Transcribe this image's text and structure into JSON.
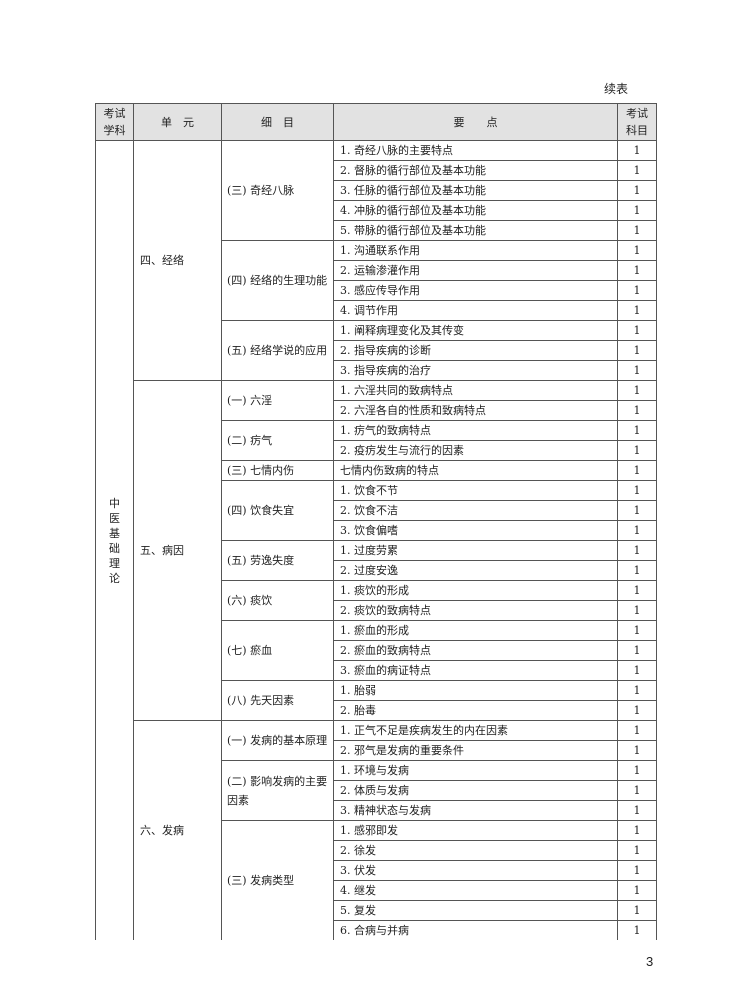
{
  "continued_label": "续表",
  "headers": [
    "考试学科",
    "单　元",
    "细　目",
    "要　　点",
    "考试科目"
  ],
  "subject": "中医基础理论",
  "units": [
    {
      "name": "四、经络",
      "details": [
        {
          "name": "(三) 奇经八脉",
          "points": [
            {
              "text": "1. 奇经八脉的主要特点",
              "level": "1"
            },
            {
              "text": "2. 督脉的循行部位及基本功能",
              "level": "1"
            },
            {
              "text": "3. 任脉的循行部位及基本功能",
              "level": "1"
            },
            {
              "text": "4. 冲脉的循行部位及基本功能",
              "level": "1"
            },
            {
              "text": "5. 带脉的循行部位及基本功能",
              "level": "1"
            }
          ]
        },
        {
          "name": "(四) 经络的生理功能",
          "points": [
            {
              "text": "1. 沟通联系作用",
              "level": "1"
            },
            {
              "text": "2. 运输渗灌作用",
              "level": "1"
            },
            {
              "text": "3. 感应传导作用",
              "level": "1"
            },
            {
              "text": "4. 调节作用",
              "level": "1"
            }
          ]
        },
        {
          "name": "(五) 经络学说的应用",
          "points": [
            {
              "text": "1. 阐释病理变化及其传变",
              "level": "1"
            },
            {
              "text": "2. 指导疾病的诊断",
              "level": "1"
            },
            {
              "text": "3. 指导疾病的治疗",
              "level": "1"
            }
          ]
        }
      ]
    },
    {
      "name": "五、病因",
      "details": [
        {
          "name": "(一) 六淫",
          "points": [
            {
              "text": "1. 六淫共同的致病特点",
              "level": "1"
            },
            {
              "text": "2. 六淫各自的性质和致病特点",
              "level": "1"
            }
          ]
        },
        {
          "name": "(二) 疠气",
          "points": [
            {
              "text": "1. 疠气的致病特点",
              "level": "1"
            },
            {
              "text": "2. 疫疠发生与流行的因素",
              "level": "1"
            }
          ]
        },
        {
          "name": "(三) 七情内伤",
          "points": [
            {
              "text": "七情内伤致病的特点",
              "level": "1"
            }
          ]
        },
        {
          "name": "(四) 饮食失宜",
          "points": [
            {
              "text": "1. 饮食不节",
              "level": "1"
            },
            {
              "text": "2. 饮食不洁",
              "level": "1"
            },
            {
              "text": "3. 饮食偏嗜",
              "level": "1"
            }
          ]
        },
        {
          "name": "(五) 劳逸失度",
          "points": [
            {
              "text": "1. 过度劳累",
              "level": "1"
            },
            {
              "text": "2. 过度安逸",
              "level": "1"
            }
          ]
        },
        {
          "name": "(六) 痰饮",
          "points": [
            {
              "text": "1. 痰饮的形成",
              "level": "1"
            },
            {
              "text": "2. 痰饮的致病特点",
              "level": "1"
            }
          ]
        },
        {
          "name": "(七) 瘀血",
          "points": [
            {
              "text": "1. 瘀血的形成",
              "level": "1"
            },
            {
              "text": "2. 瘀血的致病特点",
              "level": "1"
            },
            {
              "text": "3. 瘀血的病证特点",
              "level": "1"
            }
          ]
        },
        {
          "name": "(八) 先天因素",
          "points": [
            {
              "text": "1. 胎弱",
              "level": "1"
            },
            {
              "text": "2. 胎毒",
              "level": "1"
            }
          ]
        }
      ]
    },
    {
      "name": "六、发病",
      "details": [
        {
          "name": "(一) 发病的基本原理",
          "points": [
            {
              "text": "1. 正气不足是疾病发生的内在因素",
              "level": "1"
            },
            {
              "text": "2. 邪气是发病的重要条件",
              "level": "1"
            }
          ]
        },
        {
          "name": "(二) 影响发病的主要因素",
          "points": [
            {
              "text": "1. 环境与发病",
              "level": "1"
            },
            {
              "text": "2. 体质与发病",
              "level": "1"
            },
            {
              "text": "3. 精神状态与发病",
              "level": "1"
            }
          ]
        },
        {
          "name": "(三) 发病类型",
          "points": [
            {
              "text": "1. 感邪即发",
              "level": "1"
            },
            {
              "text": "2. 徐发",
              "level": "1"
            },
            {
              "text": "3. 伏发",
              "level": "1"
            },
            {
              "text": "4. 继发",
              "level": "1"
            },
            {
              "text": "5. 复发",
              "level": "1"
            },
            {
              "text": "6. 合病与并病",
              "level": "1"
            }
          ]
        }
      ]
    }
  ],
  "page_number": "3"
}
